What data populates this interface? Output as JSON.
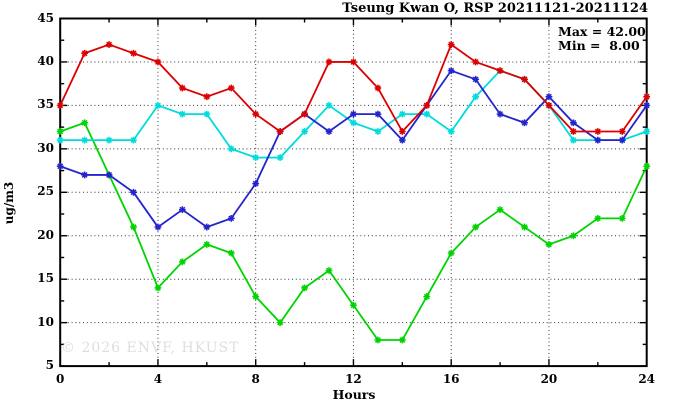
{
  "title": "Tseung Kwan O, RSP 20211121-20211124",
  "annotation": {
    "max_label": "Max = 42.00",
    "min_label": "Min =  8.00"
  },
  "watermark": "© 2026 ENVF, HKUST",
  "colors": {
    "red": "#dd0000",
    "blue": "#2424cc",
    "cyan": "#00dcdc",
    "green": "#00d400",
    "frame": "#000000",
    "grid": "#333333",
    "watermark_gray": "#dedede"
  },
  "chart_data": {
    "type": "line",
    "title": "Tseung Kwan O, RSP 20211121-20211124",
    "xlabel": "Hours",
    "ylabel": "ug/m3",
    "xlim": [
      0,
      24
    ],
    "ylim": [
      5,
      45
    ],
    "x_ticks": [
      0,
      4,
      8,
      12,
      16,
      20,
      24
    ],
    "y_ticks": [
      5,
      10,
      15,
      20,
      25,
      30,
      35,
      40,
      45
    ],
    "x_minor_step": 2,
    "y_minor_step": 2.5,
    "grid": true,
    "legend_position": "none",
    "max_value": 42.0,
    "min_value": 8.0,
    "x": [
      0,
      1,
      2,
      3,
      4,
      5,
      6,
      7,
      8,
      9,
      10,
      11,
      12,
      13,
      14,
      15,
      16,
      17,
      18,
      19,
      20,
      21,
      22,
      23,
      24
    ],
    "series": [
      {
        "name": "day-1-red",
        "color": "#dd0000",
        "values": [
          35,
          41,
          42,
          41,
          40,
          37,
          36,
          37,
          34,
          32,
          34,
          40,
          40,
          37,
          32,
          35,
          42,
          40,
          39,
          38,
          35,
          32,
          32,
          32,
          36
        ]
      },
      {
        "name": "day-2-blue",
        "color": "#2424cc",
        "values": [
          28,
          27,
          27,
          25,
          21,
          23,
          21,
          22,
          26,
          32,
          34,
          32,
          34,
          34,
          31,
          35,
          39,
          38,
          34,
          33,
          36,
          33,
          31,
          31,
          35
        ]
      },
      {
        "name": "day-3-cyan",
        "color": "#00dcdc",
        "values": [
          31,
          31,
          31,
          31,
          35,
          34,
          34,
          30,
          29,
          29,
          32,
          35,
          33,
          32,
          34,
          34,
          32,
          36,
          39,
          38,
          35,
          31,
          31,
          31,
          32
        ]
      },
      {
        "name": "day-4-green",
        "color": "#00d400",
        "values": [
          32,
          33,
          27,
          21,
          14,
          17,
          19,
          18,
          13,
          10,
          14,
          16,
          12,
          8,
          8,
          13,
          18,
          21,
          23,
          21,
          19,
          20,
          22,
          22,
          28
        ]
      }
    ]
  }
}
